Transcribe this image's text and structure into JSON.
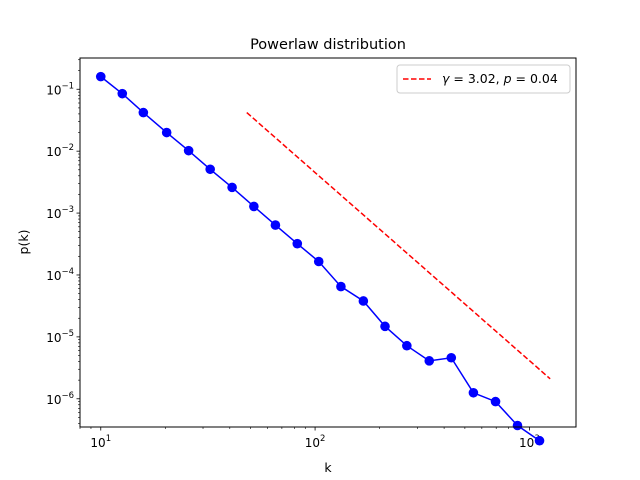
{
  "chart_data": {
    "type": "line",
    "title": "Powerlaw distribution",
    "xlabel": "k",
    "ylabel": "p(k)",
    "xscale": "log",
    "yscale": "log",
    "xlim": [
      8,
      1650
    ],
    "ylim": [
      3.5e-07,
      0.32
    ],
    "grid": false,
    "legend_position": "top-right",
    "x_ticks": [
      {
        "value": 10,
        "base": "10",
        "exp": "1"
      },
      {
        "value": 100,
        "base": "10",
        "exp": "2"
      },
      {
        "value": 1000,
        "base": "10",
        "exp": "3"
      }
    ],
    "y_ticks": [
      {
        "value": 1e-06,
        "base": "10",
        "exp": "−6"
      },
      {
        "value": 1e-05,
        "base": "10",
        "exp": "−5"
      },
      {
        "value": 0.0001,
        "base": "10",
        "exp": "−4"
      },
      {
        "value": 0.001,
        "base": "10",
        "exp": "−3"
      },
      {
        "value": 0.01,
        "base": "10",
        "exp": "−2"
      },
      {
        "value": 0.1,
        "base": "10",
        "exp": "−1"
      }
    ],
    "series": [
      {
        "type": "line-marker",
        "color": "#0000ff",
        "x": [
          10,
          12.6,
          15.8,
          20.3,
          25.7,
          32.4,
          41,
          51.8,
          65.3,
          82.6,
          104,
          132,
          168,
          212,
          268,
          341,
          432,
          548,
          695,
          880,
          1115
        ],
        "y": [
          0.16,
          0.085,
          0.042,
          0.02,
          0.0102,
          0.0051,
          0.0026,
          0.00128,
          0.00064,
          0.00032,
          0.000165,
          6.5e-05,
          3.8e-05,
          1.48e-05,
          7.2e-06,
          4.1e-06,
          4.6e-06,
          1.25e-06,
          9e-07,
          3.7e-07,
          2.1e-07
        ]
      },
      {
        "type": "dashed-line",
        "color": "#ff0000",
        "x": [
          48,
          1250
        ],
        "y": [
          0.042,
          2.1e-06
        ]
      }
    ],
    "legend": {
      "gamma_symbol": "γ",
      "gamma_value": " = 3.02, ",
      "p_symbol": "p",
      "p_value": " = 0.04"
    }
  }
}
